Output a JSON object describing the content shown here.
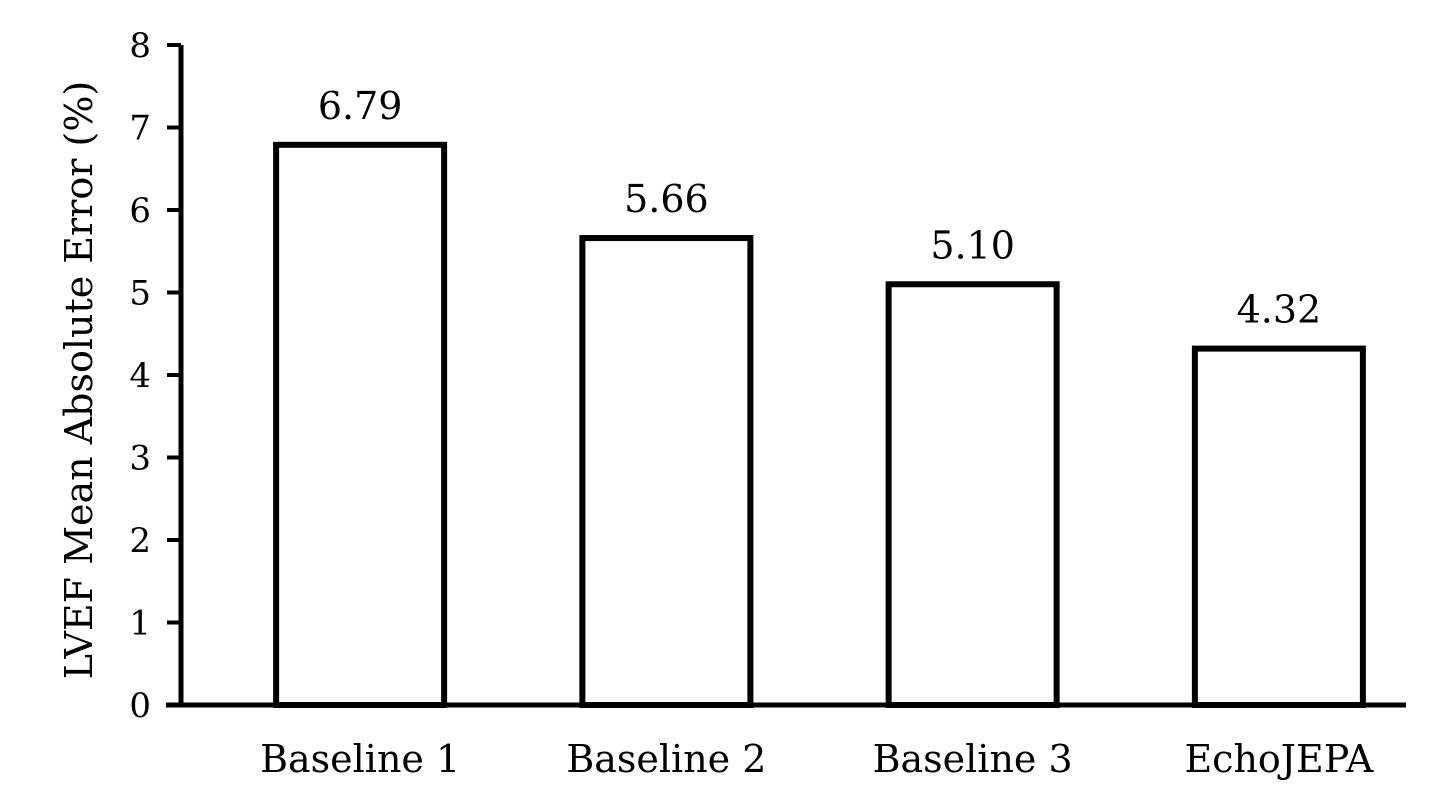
{
  "chart_data": {
    "type": "bar",
    "categories": [
      "Baseline 1",
      "Baseline 2",
      "Baseline 3",
      "EchoJEPA"
    ],
    "values": [
      6.79,
      5.66,
      5.1,
      4.32
    ],
    "value_labels": [
      "6.79",
      "5.66",
      "5.10",
      "4.32"
    ],
    "title": "",
    "xlabel": "",
    "ylabel": "LVEF Mean Absolute Error (%)",
    "ylim": [
      0,
      8
    ],
    "yticks": [
      "0",
      "1",
      "2",
      "3",
      "4",
      "5",
      "6",
      "7",
      "8"
    ],
    "grid": false,
    "legend": "none",
    "colors": {
      "bar_fill": "#ffffff",
      "bar_stroke": "#000000",
      "axis": "#000000"
    }
  }
}
